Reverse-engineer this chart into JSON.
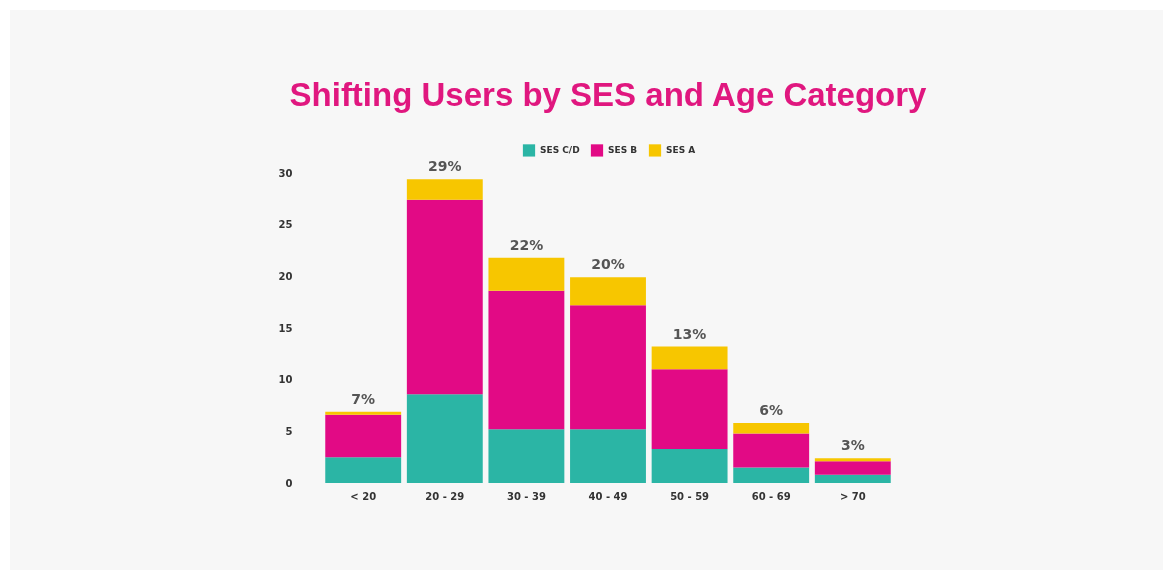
{
  "chart_data": {
    "type": "bar",
    "title": "Shifting Users by SES and Age Category",
    "categories": [
      "< 20",
      "20 - 29",
      "30 - 39",
      "40 - 49",
      "50 - 59",
      "60 - 69",
      "> 70"
    ],
    "stacked": true,
    "series": [
      {
        "name": "SES C/D",
        "color": "#2bb5a5",
        "values": [
          2.5,
          8.6,
          5.2,
          5.2,
          3.3,
          1.5,
          0.8
        ]
      },
      {
        "name": "SES B",
        "color": "#e20a85",
        "values": [
          4.1,
          18.8,
          13.4,
          12.0,
          7.7,
          3.3,
          1.3
        ]
      },
      {
        "name": "SES A",
        "color": "#f7c600",
        "values": [
          0.3,
          2.0,
          3.2,
          2.7,
          2.2,
          1.0,
          0.3
        ]
      }
    ],
    "totals": [
      "7%",
      "29%",
      "22%",
      "20%",
      "13%",
      "6%",
      "3%"
    ],
    "ylim": [
      0,
      30
    ],
    "yticks": [
      0,
      5,
      10,
      15,
      20,
      25,
      30
    ],
    "grid": false,
    "legend": "top"
  }
}
